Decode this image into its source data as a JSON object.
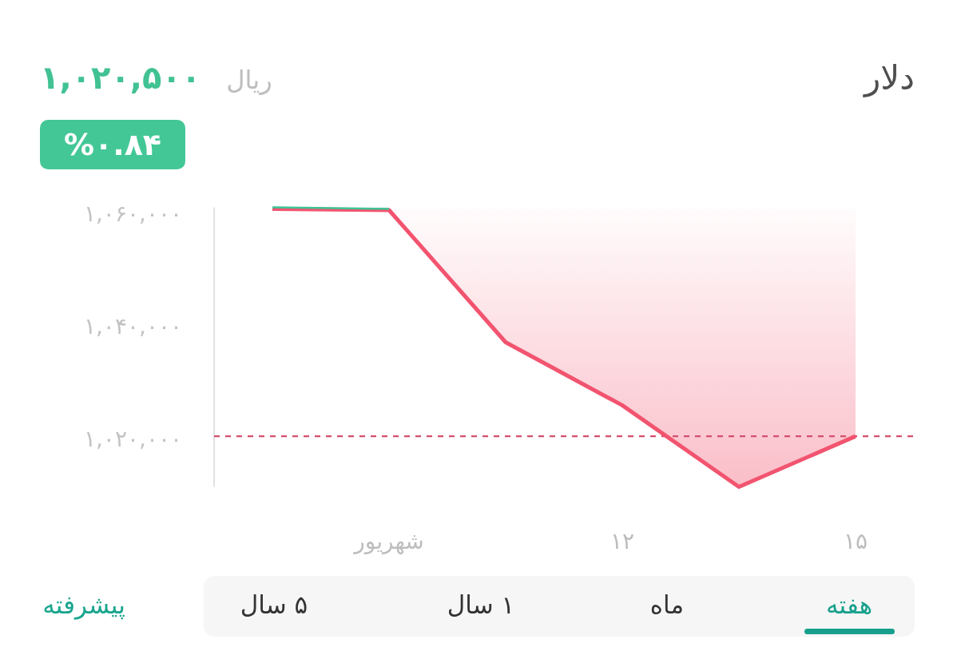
{
  "chart_data": {
    "type": "line",
    "title": "دلار",
    "annotations": [
      "۱,۰۲۰,۵۰۰",
      "ریال",
      "%۰.۸۴",
      "هفته",
      "ماه",
      "۱ سال",
      "۵ سال",
      "پیشرفته"
    ],
    "categories": [
      null,
      "شهریور",
      null,
      "۱۲",
      null,
      "۱۵"
    ],
    "series": [
      {
        "color": "#f2546f",
        "values": [
          1060900,
          1060700,
          1037200,
          1026000,
          1011500,
          1020500
        ],
        "lower": [
          1060900,
          1060700,
          1037200,
          1026000,
          1011500,
          1020500
        ],
        "upper": [
          1060900,
          1060900,
          1060900,
          1060900,
          1060900,
          1060900
        ]
      },
      {
        "color": "#3ec495",
        "values": [
          1061200,
          1060900,
          null,
          null,
          null,
          null
        ]
      }
    ],
    "ylim": [
      1011500,
      1061200
    ],
    "yticks": [
      {
        "value": 1060000,
        "label": "۱,۰۶۰,۰۰۰"
      },
      {
        "value": 1040000,
        "label": "۱,۰۴۰,۰۰۰"
      },
      {
        "value": 1020000,
        "label": "۱,۰۲۰,۰۰۰"
      }
    ],
    "ref_lines": [
      {
        "axis": "y",
        "value": 1020500,
        "color": "#d44f6e",
        "line_style": "dashed"
      }
    ],
    "line_style": "solid"
  }
}
